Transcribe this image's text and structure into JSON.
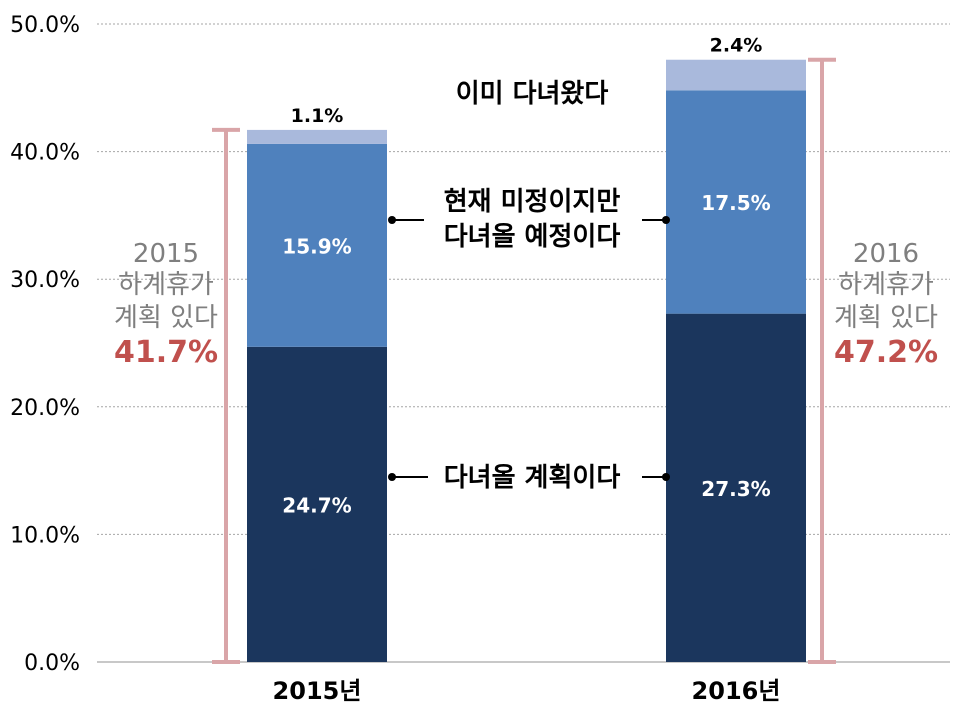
{
  "chart_data": {
    "type": "bar",
    "stacked": true,
    "categories": [
      "2015년",
      "2016년"
    ],
    "series": [
      {
        "name": "다녀올 계획이다",
        "values": [
          24.7,
          27.3
        ],
        "labels": [
          "24.7%",
          "27.3%"
        ],
        "color": "#1b365d"
      },
      {
        "name": "현재 미정이지만 다녀올 예정이다",
        "values": [
          15.9,
          17.5
        ],
        "labels": [
          "15.9%",
          "17.5%"
        ],
        "color": "#4f81bd"
      },
      {
        "name": "이미 다녀왔다",
        "values": [
          1.1,
          2.4
        ],
        "labels": [
          "1.1%",
          "2.4%"
        ],
        "color": "#a9b9dc"
      }
    ],
    "y_ticks": [
      "0.0%",
      "10.0%",
      "20.0%",
      "30.0%",
      "40.0%",
      "50.0%"
    ],
    "ylim": [
      0,
      50
    ],
    "grid": true,
    "annotations": {
      "series_labels": {
        "already": "이미 다녀왔다",
        "undecided_line1": "현재 미정이지만",
        "undecided_line2": "다녀올 예정이다",
        "planned": "다녀올 계획이다"
      },
      "totals": [
        {
          "year": "2015",
          "line2": "하계휴가",
          "line3": "계획 있다",
          "value_label": "41.7%",
          "value": 41.7
        },
        {
          "year": "2016",
          "line2": "하계휴가",
          "line3": "계획 있다",
          "value_label": "47.2%",
          "value": 47.2
        }
      ]
    },
    "colors": {
      "grid": "#a6a6a6",
      "axis_text": "#000000",
      "bracket": "#d9a5a8",
      "total_text": "#7f7f7f",
      "total_value": "#c0504d"
    }
  }
}
